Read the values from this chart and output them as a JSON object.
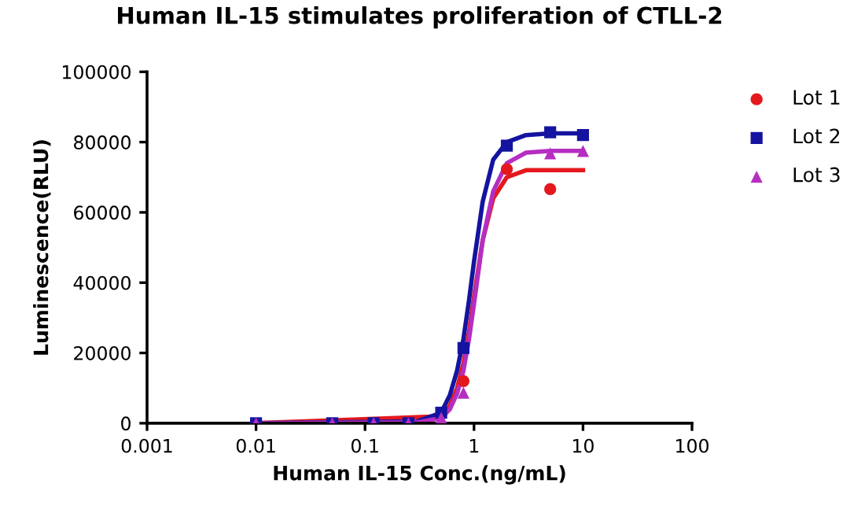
{
  "chart_data": {
    "type": "scatter",
    "title": "Human IL-15 stimulates proliferation of CTLL-2",
    "xlabel": "Human IL-15 Conc.(ng/mL)",
    "ylabel": "Luminescence(RLU)",
    "log": "x",
    "xlim": [
      0.001,
      100
    ],
    "xticks": [
      0.001,
      0.01,
      0.1,
      1,
      10,
      100
    ],
    "ylim": [
      0,
      100000
    ],
    "yticks": [
      0,
      20000,
      40000,
      60000,
      80000,
      100000
    ],
    "grid": false,
    "legend": "top right",
    "series": [
      {
        "name": "Lot 1",
        "marker": "circle",
        "color": "#e3191e",
        "x": [
          0.8,
          2,
          5
        ],
        "values": [
          12000,
          72300,
          66600
        ]
      },
      {
        "name": "Lot 2",
        "marker": "square",
        "color": "#1414a0",
        "x": [
          0.01,
          0.05,
          0.12,
          0.25,
          0.5,
          0.8,
          2,
          5,
          10
        ],
        "values": [
          0,
          0,
          0,
          0,
          3000,
          21400,
          79000,
          82800,
          82000
        ]
      },
      {
        "name": "Lot 3",
        "marker": "triangle",
        "color": "#b52ec2",
        "x": [
          0.01,
          0.05,
          0.12,
          0.25,
          0.5,
          0.8,
          2,
          5,
          10
        ],
        "values": [
          0,
          0,
          0,
          0,
          1500,
          8700,
          null,
          76800,
          77500
        ]
      },
      {
        "type": "line",
        "color": "#e3191e",
        "x": [
          0.01,
          0.5,
          0.6,
          0.7,
          0.8,
          0.9,
          1,
          1.2,
          1.5,
          2,
          3,
          5,
          10
        ],
        "values": [
          0,
          2000,
          5000,
          10000,
          17000,
          26000,
          36000,
          52000,
          64000,
          70000,
          72000,
          72000,
          72000
        ]
      },
      {
        "type": "line",
        "color": "#1414a0",
        "x": [
          0.01,
          0.3,
          0.5,
          0.6,
          0.7,
          0.8,
          0.9,
          1,
          1.2,
          1.5,
          2,
          3,
          5,
          10
        ],
        "values": [
          0,
          500,
          3000,
          8000,
          15000,
          24000,
          35000,
          46000,
          63000,
          75000,
          80000,
          82000,
          82500,
          82500
        ]
      },
      {
        "type": "line",
        "color": "#b52ec2",
        "x": [
          0.01,
          0.3,
          0.5,
          0.6,
          0.7,
          0.8,
          0.9,
          1,
          1.2,
          1.5,
          2,
          3,
          5,
          10
        ],
        "values": [
          0,
          200,
          1500,
          4000,
          8500,
          15000,
          24000,
          34000,
          52000,
          66000,
          74000,
          77000,
          77500,
          77500
        ]
      }
    ]
  }
}
